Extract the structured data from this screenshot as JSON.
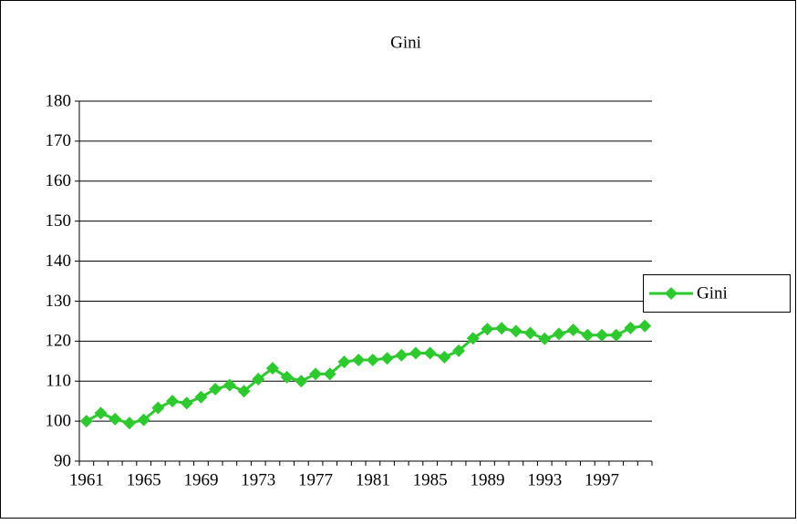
{
  "chart_data": {
    "type": "line",
    "title": "Gini",
    "categories": [
      "1961",
      null,
      null,
      null,
      "1965",
      null,
      null,
      null,
      "1969",
      null,
      null,
      null,
      "1973",
      null,
      null,
      null,
      "1977",
      null,
      null,
      null,
      "1981",
      null,
      null,
      null,
      "1985",
      null,
      null,
      null,
      "1989",
      null,
      null,
      null,
      "1993",
      null,
      null,
      null,
      "1997",
      null,
      null,
      null
    ],
    "series": [
      {
        "name": "Gini",
        "color": "#2ec92e",
        "values": [
          100,
          102,
          100.5,
          99.5,
          100.3,
          103.3,
          105,
          104.5,
          106,
          108,
          109,
          107.5,
          110.5,
          113.2,
          111,
          110,
          111.8,
          111.8,
          114.8,
          115.3,
          115.3,
          115.7,
          116.5,
          117,
          117,
          116,
          117.6,
          120.7,
          123,
          123.2,
          122.5,
          122,
          120.6,
          121.8,
          122.8,
          121.5,
          121.5,
          121.5,
          123.3,
          123.8
        ]
      }
    ],
    "ylim": [
      90,
      180
    ],
    "yticks": [
      90,
      100,
      110,
      120,
      130,
      140,
      150,
      160,
      170,
      180
    ],
    "grid": true,
    "legend": "right"
  }
}
